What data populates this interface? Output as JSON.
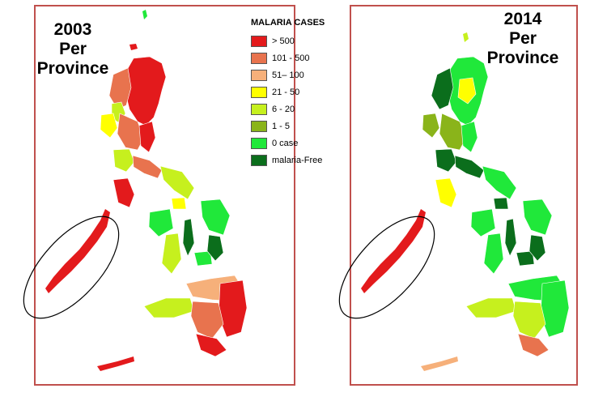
{
  "maps": [
    {
      "title_lines": [
        "2003",
        "Per",
        "Province"
      ]
    },
    {
      "title_lines": [
        "2014",
        "Per",
        "Province"
      ]
    }
  ],
  "legend": {
    "title": "MALARIA CASES",
    "items": [
      {
        "label": "> 500",
        "color": "#e31a1c"
      },
      {
        "label": "101 - 500",
        "color": "#e8734e"
      },
      {
        "label": "51– 100",
        "color": "#f6b07a"
      },
      {
        "label": "21 - 50",
        "color": "#ffff00"
      },
      {
        "label": "6 - 20",
        "color": "#c6f01e"
      },
      {
        "label": "1 - 5",
        "color": "#8ab41a"
      },
      {
        "label": "0 case",
        "color": "#20e83a"
      },
      {
        "label": "malaria-Free",
        "color": "#0b6e1c"
      }
    ]
  },
  "colors": {
    "frame": "#c0504d",
    "highlight_region": "#e31a1c"
  }
}
